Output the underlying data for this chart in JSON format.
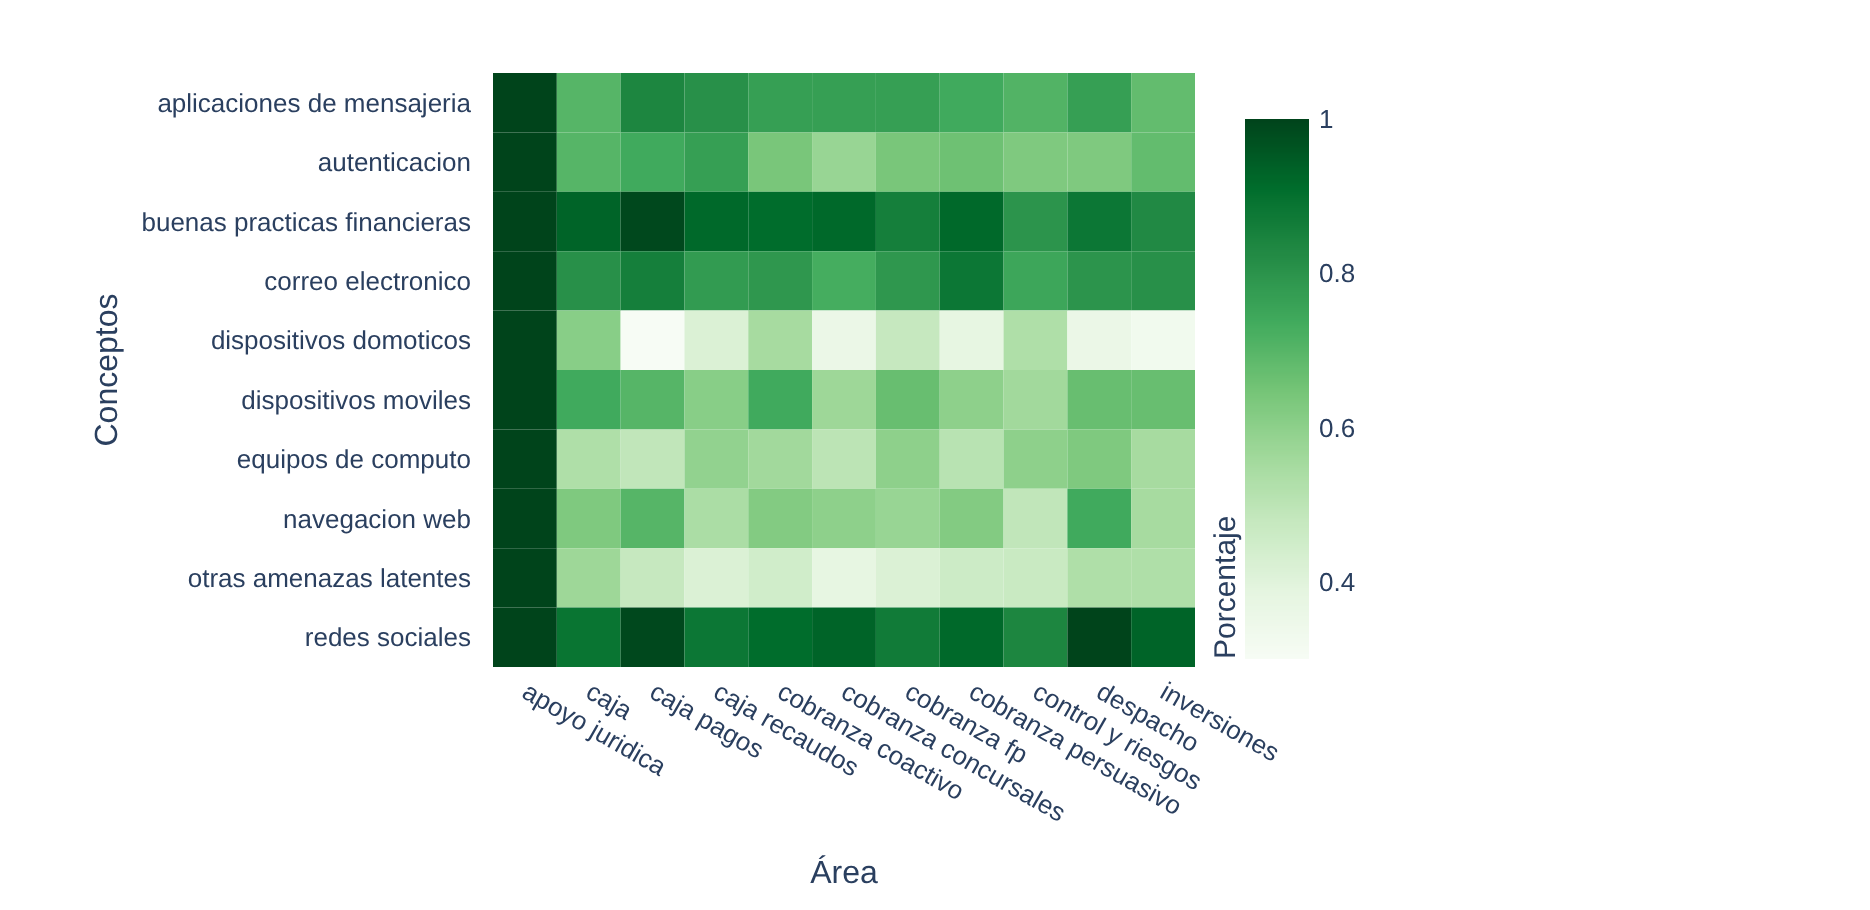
{
  "chart_data": {
    "type": "heatmap",
    "xlabel": "Área",
    "ylabel": "Conceptos",
    "clabel": "Porcentaje",
    "categories": [
      "apoyo juridica",
      "caja",
      "caja pagos",
      "caja recaudos",
      "cobranza coactivo",
      "cobranza concursales",
      "cobranza fp",
      "cobranza persuasivo",
      "control y riesgos",
      "despacho",
      "inversiones"
    ],
    "y_categories": [
      "aplicaciones de mensajeria",
      "autenticacion",
      "buenas practicas financieras",
      "correo electronico",
      "dispositivos domoticos",
      "dispositivos moviles",
      "equipos de computo",
      "navegacion web",
      "otras amenazas latentes",
      "redes sociales"
    ],
    "cells": [
      [
        1,
        0.7,
        0.84,
        0.81,
        0.77,
        0.77,
        0.77,
        0.74,
        0.71,
        0.77,
        0.68
      ],
      [
        1,
        0.7,
        0.74,
        0.77,
        0.64,
        0.58,
        0.64,
        0.66,
        0.63,
        0.63,
        0.68
      ],
      [
        1,
        0.93,
        0.99,
        0.92,
        0.91,
        0.92,
        0.86,
        0.92,
        0.8,
        0.88,
        0.83
      ],
      [
        1,
        0.81,
        0.86,
        0.78,
        0.79,
        0.73,
        0.79,
        0.88,
        0.75,
        0.8,
        0.81
      ],
      [
        1,
        0.61,
        0.3,
        0.42,
        0.55,
        0.36,
        0.48,
        0.38,
        0.53,
        0.36,
        0.33
      ],
      [
        1,
        0.74,
        0.7,
        0.61,
        0.74,
        0.57,
        0.67,
        0.6,
        0.56,
        0.67,
        0.67
      ],
      [
        1,
        0.53,
        0.49,
        0.59,
        0.56,
        0.5,
        0.6,
        0.51,
        0.6,
        0.63,
        0.55
      ],
      [
        1,
        0.63,
        0.7,
        0.54,
        0.62,
        0.6,
        0.58,
        0.62,
        0.49,
        0.74,
        0.55
      ],
      [
        1,
        0.57,
        0.48,
        0.42,
        0.45,
        0.38,
        0.42,
        0.46,
        0.47,
        0.53,
        0.53
      ],
      [
        1,
        0.89,
        0.99,
        0.88,
        0.91,
        0.93,
        0.87,
        0.92,
        0.84,
        1.0,
        0.93
      ]
    ],
    "clim": [
      0.3,
      1
    ],
    "cticks": [
      0.4,
      0.6,
      0.8,
      1
    ]
  }
}
